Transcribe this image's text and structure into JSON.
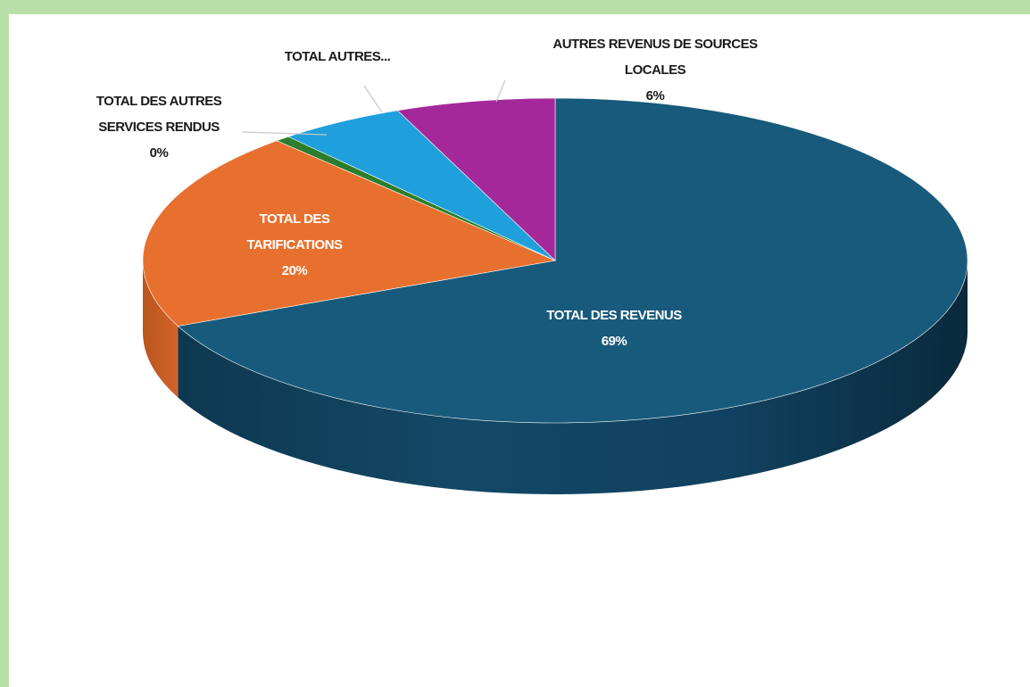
{
  "chart_data": {
    "type": "pie",
    "title": "",
    "slices": [
      {
        "label_lines": [
          "TOTAL DES REVENUS"
        ],
        "pct_text": "69%",
        "value": 69,
        "color": "#185a7b",
        "label_color": "#ffffff"
      },
      {
        "label_lines": [
          "TOTAL DES",
          "TARIFICATIONS"
        ],
        "pct_text": "20%",
        "value": 20,
        "color": "#e8702f",
        "label_color": "#ffffff"
      },
      {
        "label_lines": [
          "TOTAL DES AUTRES",
          "SERVICES RENDUS"
        ],
        "pct_text": "0%",
        "value": 0.6,
        "color": "#2c7d2c",
        "label_color": "#1a1a1a"
      },
      {
        "label_lines": [
          "TOTAL AUTRES..."
        ],
        "pct_text": "",
        "value": 5,
        "color": "#1fa0dc",
        "label_color": "#1a1a1a"
      },
      {
        "label_lines": [
          "AUTRES REVENUS DE SOURCES",
          "LOCALES"
        ],
        "pct_text": "6%",
        "value": 6.3,
        "color": "#a5289a",
        "label_color": "#1a1a1a"
      }
    ]
  }
}
